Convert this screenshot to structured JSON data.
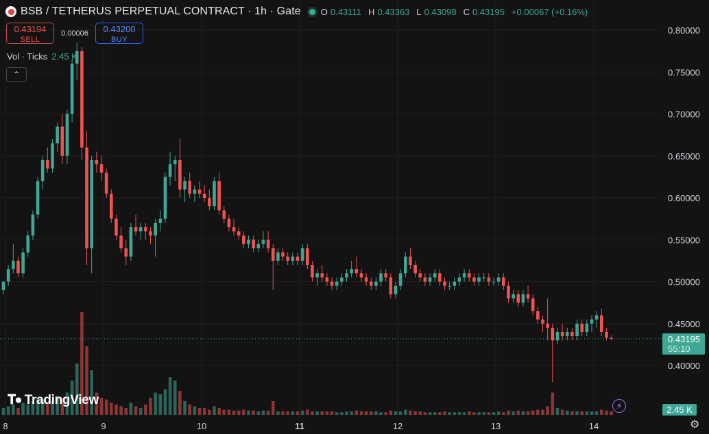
{
  "header": {
    "title": "BSB / TETHERUS PERPETUAL CONTRACT · 1h · Gate",
    "ohlc": [
      {
        "key": "O",
        "value": "0.43111"
      },
      {
        "key": "H",
        "value": "0.43363"
      },
      {
        "key": "L",
        "value": "0.43098"
      },
      {
        "key": "C",
        "value": "0.43195"
      }
    ],
    "change": "+0.00067 (+0.16%)"
  },
  "trade": {
    "sell_price": "0.43194",
    "sell_label": "SELL",
    "spread": "0.00006",
    "buy_price": "0.43200",
    "buy_label": "BUY"
  },
  "volume_legend": {
    "label": "Vol · Ticks",
    "value": "2.45 K"
  },
  "last_price_tag": {
    "price": "0.43195",
    "countdown": "55:10"
  },
  "volume_tag": "2.45 K",
  "logo_text": "TradingView",
  "colors": {
    "up": "#3fa796",
    "down": "#ef5350",
    "background": "#131313",
    "grid": "#1f1f1f"
  },
  "icons": {
    "collapse": "chevron-up-icon",
    "settings": "gear-icon",
    "lightning": "lightning-icon"
  },
  "chart_data": {
    "type": "candlestick",
    "y_ticks": [
      "0.80000",
      "0.75000",
      "0.70000",
      "0.65000",
      "0.60000",
      "0.55000",
      "0.50000",
      "0.45000",
      "0.40000"
    ],
    "ylim": [
      0.35,
      0.8
    ],
    "x_ticks": [
      {
        "label": "8",
        "bold": false,
        "bar": 0
      },
      {
        "label": "9",
        "bold": false,
        "bar": 20
      },
      {
        "label": "10",
        "bold": false,
        "bar": 40
      },
      {
        "label": "11",
        "bold": true,
        "bar": 60
      },
      {
        "label": "12",
        "bold": false,
        "bar": 80
      },
      {
        "label": "13",
        "bold": false,
        "bar": 100
      },
      {
        "label": "14",
        "bold": false,
        "bar": 120
      }
    ],
    "candles": [
      [
        0.49,
        0.5,
        0.485,
        0.5
      ],
      [
        0.5,
        0.52,
        0.495,
        0.515
      ],
      [
        0.515,
        0.545,
        0.51,
        0.525
      ],
      [
        0.525,
        0.53,
        0.505,
        0.51
      ],
      [
        0.51,
        0.54,
        0.505,
        0.535
      ],
      [
        0.535,
        0.56,
        0.53,
        0.555
      ],
      [
        0.555,
        0.585,
        0.55,
        0.58
      ],
      [
        0.58,
        0.625,
        0.575,
        0.62
      ],
      [
        0.62,
        0.65,
        0.61,
        0.645
      ],
      [
        0.645,
        0.66,
        0.63,
        0.635
      ],
      [
        0.635,
        0.67,
        0.63,
        0.665
      ],
      [
        0.665,
        0.69,
        0.655,
        0.685
      ],
      [
        0.685,
        0.7,
        0.64,
        0.65
      ],
      [
        0.65,
        0.705,
        0.64,
        0.7
      ],
      [
        0.7,
        0.765,
        0.69,
        0.76
      ],
      [
        0.76,
        0.785,
        0.74,
        0.775
      ],
      [
        0.775,
        0.78,
        0.645,
        0.66
      ],
      [
        0.66,
        0.68,
        0.52,
        0.54
      ],
      [
        0.54,
        0.65,
        0.51,
        0.645
      ],
      [
        0.645,
        0.655,
        0.63,
        0.64
      ],
      [
        0.64,
        0.65,
        0.62,
        0.63
      ],
      [
        0.63,
        0.635,
        0.6,
        0.605
      ],
      [
        0.605,
        0.61,
        0.57,
        0.575
      ],
      [
        0.575,
        0.58,
        0.55,
        0.555
      ],
      [
        0.555,
        0.565,
        0.535,
        0.54
      ],
      [
        0.54,
        0.55,
        0.52,
        0.53
      ],
      [
        0.53,
        0.57,
        0.525,
        0.565
      ],
      [
        0.565,
        0.58,
        0.555,
        0.56
      ],
      [
        0.56,
        0.57,
        0.55,
        0.565
      ],
      [
        0.565,
        0.57,
        0.55,
        0.56
      ],
      [
        0.56,
        0.565,
        0.545,
        0.555
      ],
      [
        0.555,
        0.575,
        0.53,
        0.57
      ],
      [
        0.57,
        0.585,
        0.56,
        0.575
      ],
      [
        0.575,
        0.63,
        0.57,
        0.625
      ],
      [
        0.625,
        0.655,
        0.615,
        0.64
      ],
      [
        0.64,
        0.65,
        0.62,
        0.645
      ],
      [
        0.645,
        0.67,
        0.6,
        0.61
      ],
      [
        0.61,
        0.625,
        0.595,
        0.62
      ],
      [
        0.62,
        0.63,
        0.6,
        0.605
      ],
      [
        0.605,
        0.615,
        0.595,
        0.61
      ],
      [
        0.61,
        0.62,
        0.6,
        0.605
      ],
      [
        0.605,
        0.615,
        0.595,
        0.6
      ],
      [
        0.6,
        0.61,
        0.585,
        0.59
      ],
      [
        0.59,
        0.625,
        0.585,
        0.62
      ],
      [
        0.62,
        0.63,
        0.58,
        0.585
      ],
      [
        0.585,
        0.59,
        0.57,
        0.575
      ],
      [
        0.575,
        0.58,
        0.56,
        0.565
      ],
      [
        0.565,
        0.575,
        0.555,
        0.56
      ],
      [
        0.56,
        0.565,
        0.55,
        0.555
      ],
      [
        0.555,
        0.56,
        0.54,
        0.545
      ],
      [
        0.545,
        0.555,
        0.54,
        0.55
      ],
      [
        0.55,
        0.555,
        0.535,
        0.54
      ],
      [
        0.54,
        0.55,
        0.535,
        0.545
      ],
      [
        0.545,
        0.56,
        0.54,
        0.55
      ],
      [
        0.55,
        0.56,
        0.535,
        0.54
      ],
      [
        0.54,
        0.545,
        0.49,
        0.525
      ],
      [
        0.525,
        0.54,
        0.52,
        0.535
      ],
      [
        0.535,
        0.54,
        0.525,
        0.53
      ],
      [
        0.53,
        0.535,
        0.52,
        0.525
      ],
      [
        0.525,
        0.535,
        0.52,
        0.53
      ],
      [
        0.53,
        0.535,
        0.52,
        0.525
      ],
      [
        0.525,
        0.545,
        0.52,
        0.54
      ],
      [
        0.54,
        0.545,
        0.515,
        0.52
      ],
      [
        0.52,
        0.525,
        0.5,
        0.505
      ],
      [
        0.505,
        0.515,
        0.495,
        0.51
      ],
      [
        0.51,
        0.52,
        0.5,
        0.505
      ],
      [
        0.505,
        0.51,
        0.495,
        0.5
      ],
      [
        0.5,
        0.505,
        0.49,
        0.495
      ],
      [
        0.495,
        0.505,
        0.49,
        0.5
      ],
      [
        0.5,
        0.51,
        0.495,
        0.505
      ],
      [
        0.505,
        0.515,
        0.5,
        0.51
      ],
      [
        0.51,
        0.525,
        0.505,
        0.515
      ],
      [
        0.515,
        0.53,
        0.505,
        0.51
      ],
      [
        0.51,
        0.515,
        0.5,
        0.505
      ],
      [
        0.505,
        0.51,
        0.495,
        0.5
      ],
      [
        0.5,
        0.505,
        0.49,
        0.495
      ],
      [
        0.495,
        0.505,
        0.49,
        0.5
      ],
      [
        0.5,
        0.515,
        0.495,
        0.51
      ],
      [
        0.51,
        0.515,
        0.5,
        0.505
      ],
      [
        0.505,
        0.51,
        0.48,
        0.485
      ],
      [
        0.485,
        0.5,
        0.48,
        0.495
      ],
      [
        0.495,
        0.515,
        0.49,
        0.51
      ],
      [
        0.51,
        0.535,
        0.505,
        0.53
      ],
      [
        0.53,
        0.54,
        0.515,
        0.52
      ],
      [
        0.52,
        0.525,
        0.505,
        0.51
      ],
      [
        0.51,
        0.515,
        0.5,
        0.505
      ],
      [
        0.505,
        0.51,
        0.495,
        0.5
      ],
      [
        0.5,
        0.51,
        0.495,
        0.505
      ],
      [
        0.505,
        0.515,
        0.5,
        0.51
      ],
      [
        0.51,
        0.515,
        0.495,
        0.5
      ],
      [
        0.5,
        0.505,
        0.49,
        0.495
      ],
      [
        0.495,
        0.5,
        0.49,
        0.495
      ],
      [
        0.495,
        0.505,
        0.49,
        0.5
      ],
      [
        0.5,
        0.51,
        0.495,
        0.505
      ],
      [
        0.505,
        0.515,
        0.5,
        0.51
      ],
      [
        0.51,
        0.515,
        0.5,
        0.505
      ],
      [
        0.505,
        0.51,
        0.495,
        0.5
      ],
      [
        0.5,
        0.51,
        0.495,
        0.505
      ],
      [
        0.505,
        0.51,
        0.5,
        0.505
      ],
      [
        0.505,
        0.51,
        0.495,
        0.5
      ],
      [
        0.5,
        0.505,
        0.495,
        0.5
      ],
      [
        0.5,
        0.51,
        0.495,
        0.505
      ],
      [
        0.505,
        0.51,
        0.49,
        0.495
      ],
      [
        0.495,
        0.5,
        0.475,
        0.48
      ],
      [
        0.48,
        0.49,
        0.475,
        0.485
      ],
      [
        0.485,
        0.49,
        0.47,
        0.475
      ],
      [
        0.475,
        0.49,
        0.47,
        0.485
      ],
      [
        0.485,
        0.495,
        0.475,
        0.48
      ],
      [
        0.48,
        0.485,
        0.46,
        0.465
      ],
      [
        0.465,
        0.47,
        0.45,
        0.455
      ],
      [
        0.455,
        0.46,
        0.44,
        0.45
      ],
      [
        0.45,
        0.48,
        0.43,
        0.445
      ],
      [
        0.445,
        0.45,
        0.38,
        0.43
      ],
      [
        0.43,
        0.445,
        0.425,
        0.44
      ],
      [
        0.44,
        0.45,
        0.43,
        0.435
      ],
      [
        0.435,
        0.445,
        0.43,
        0.44
      ],
      [
        0.44,
        0.445,
        0.43,
        0.435
      ],
      [
        0.435,
        0.455,
        0.43,
        0.45
      ],
      [
        0.45,
        0.455,
        0.435,
        0.44
      ],
      [
        0.44,
        0.455,
        0.435,
        0.45
      ],
      [
        0.45,
        0.46,
        0.44,
        0.455
      ],
      [
        0.455,
        0.465,
        0.445,
        0.46
      ],
      [
        0.46,
        0.468,
        0.435,
        0.44
      ],
      [
        0.44,
        0.445,
        0.43,
        0.433
      ],
      [
        0.433,
        0.436,
        0.43,
        0.432
      ]
    ],
    "volumes": [
      8,
      10,
      12,
      8,
      14,
      12,
      16,
      20,
      18,
      14,
      16,
      22,
      20,
      26,
      40,
      60,
      120,
      80,
      52,
      26,
      20,
      18,
      14,
      12,
      10,
      8,
      14,
      10,
      8,
      12,
      20,
      26,
      24,
      30,
      44,
      40,
      28,
      16,
      12,
      10,
      8,
      8,
      6,
      10,
      8,
      6,
      6,
      5,
      5,
      6,
      5,
      5,
      4,
      5,
      5,
      16,
      4,
      4,
      4,
      4,
      4,
      5,
      6,
      4,
      4,
      4,
      4,
      4,
      3,
      3,
      4,
      4,
      5,
      4,
      4,
      4,
      4,
      3,
      3,
      5,
      4,
      4,
      6,
      5,
      4,
      4,
      3,
      3,
      3,
      3,
      4,
      3,
      3,
      3,
      3,
      4,
      3,
      3,
      3,
      3,
      3,
      4,
      3,
      5,
      4,
      5,
      4,
      4,
      5,
      6,
      6,
      10,
      26,
      8,
      6,
      5,
      4,
      4,
      4,
      4,
      4,
      4,
      6,
      5,
      4
    ],
    "last_price": 0.43195
  }
}
